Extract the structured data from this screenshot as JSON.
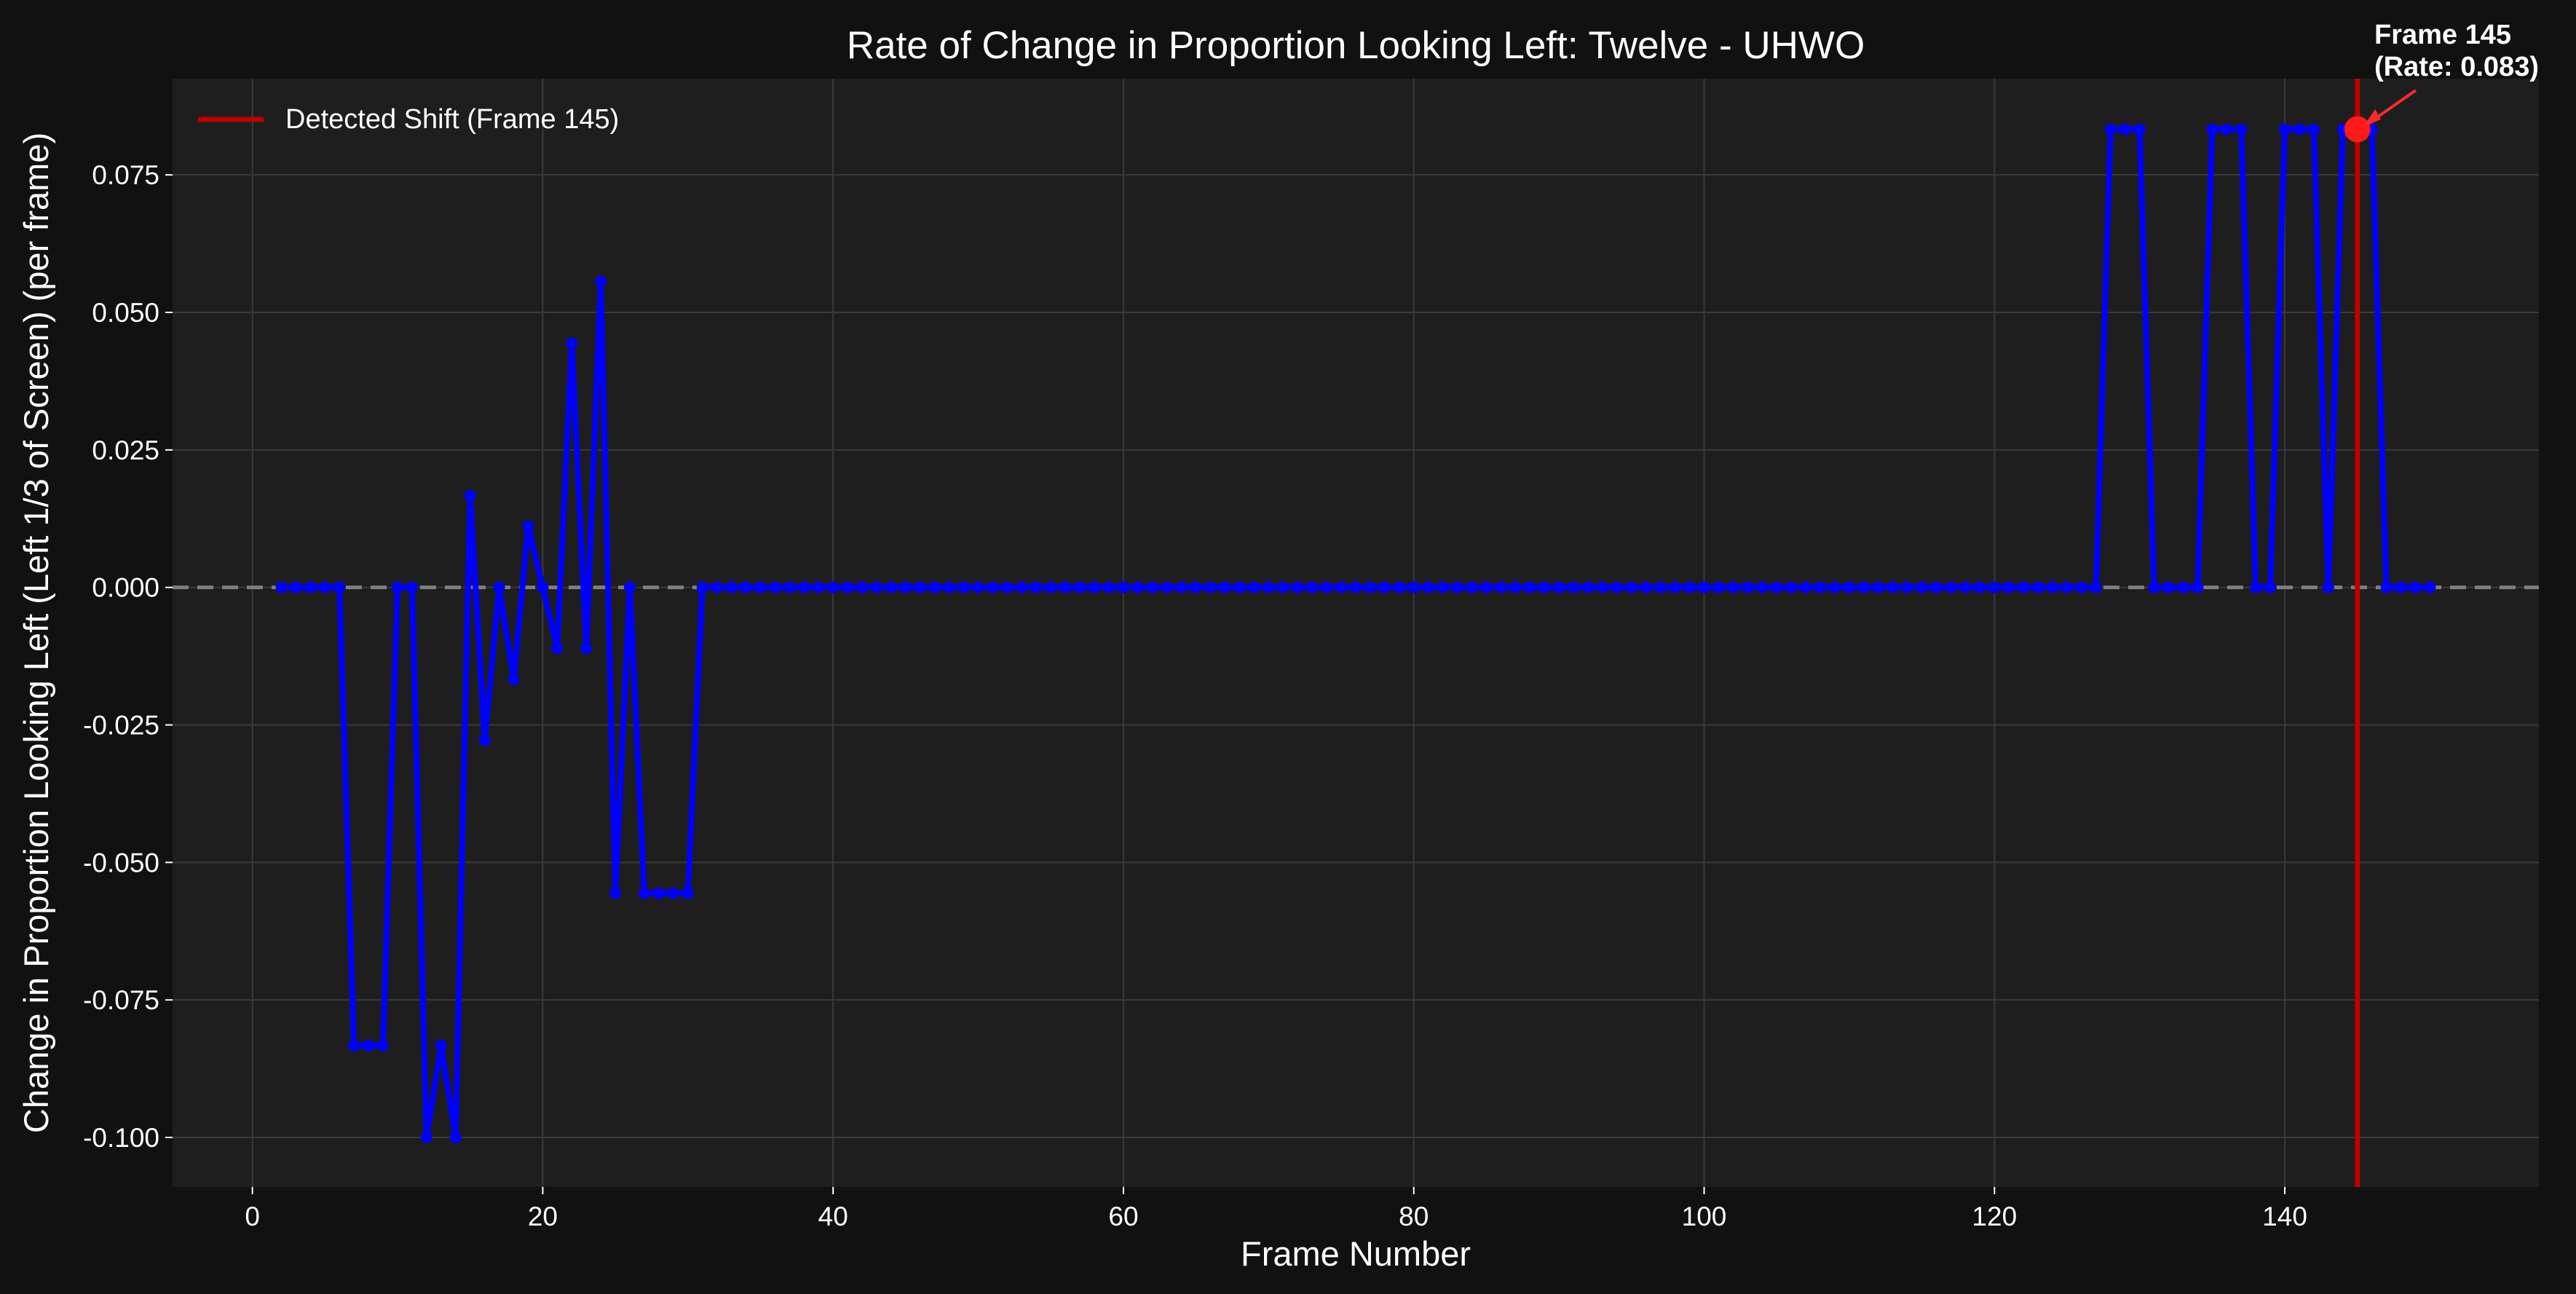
{
  "chart_data": {
    "type": "line",
    "title": "Rate of Change in Proportion Looking Left: Twelve - UHWO",
    "xlabel": "Frame Number",
    "ylabel": "Change in Proportion Looking Left (Left 1/3 of Screen) (per frame)",
    "xlim": [
      -5.5,
      157.5
    ],
    "ylim": [
      -0.109,
      0.0925
    ],
    "x_ticks": [
      "0",
      "20",
      "40",
      "60",
      "80",
      "100",
      "120",
      "140"
    ],
    "y_ticks": [
      "0.075",
      "0.050",
      "0.025",
      "0.000",
      "-0.025",
      "-0.050",
      "-0.075",
      "-0.100"
    ],
    "grid": true,
    "legend_position": "top-left",
    "legend_label": "Detected Shift (Frame 145)",
    "shift_frame": 145,
    "reference_line_y": 0.0,
    "marker": {
      "x": 145,
      "y": 0.0833
    },
    "annotation": {
      "line1": "Frame 145",
      "line2": "(Rate: 0.083)"
    },
    "series": [
      {
        "x": [
          2,
          3,
          4,
          5,
          6,
          7,
          8,
          9,
          10,
          11,
          12,
          13,
          14,
          15,
          16,
          17,
          18,
          19,
          20,
          21,
          22,
          23,
          24,
          25,
          26,
          27,
          28,
          29,
          30,
          31,
          32,
          33,
          34,
          35,
          36,
          37,
          38,
          39,
          40,
          41,
          42,
          43,
          44,
          45,
          46,
          47,
          48,
          49,
          50,
          51,
          52,
          53,
          54,
          55,
          56,
          57,
          58,
          59,
          60,
          61,
          62,
          63,
          64,
          65,
          66,
          67,
          68,
          69,
          70,
          71,
          72,
          73,
          74,
          75,
          76,
          77,
          78,
          79,
          80,
          81,
          82,
          83,
          84,
          85,
          86,
          87,
          88,
          89,
          90,
          91,
          92,
          93,
          94,
          95,
          96,
          97,
          98,
          99,
          100,
          101,
          102,
          103,
          104,
          105,
          106,
          107,
          108,
          109,
          110,
          111,
          112,
          113,
          114,
          115,
          116,
          117,
          118,
          119,
          120,
          121,
          122,
          123,
          124,
          125,
          126,
          127,
          128,
          129,
          130,
          131,
          132,
          133,
          134,
          135,
          136,
          137,
          138,
          139,
          140,
          141,
          142,
          143,
          144,
          145,
          146,
          147,
          148,
          149,
          150
        ],
        "values": [
          0,
          0,
          0,
          0,
          0,
          -0.0833,
          -0.0833,
          -0.0833,
          0,
          0,
          -0.1,
          -0.0833,
          -0.1,
          0.0167,
          -0.0278,
          0,
          -0.0167,
          0.0111,
          0,
          -0.0111,
          0.0444,
          -0.0111,
          0.0556,
          -0.0556,
          0,
          -0.0556,
          -0.0556,
          -0.0556,
          -0.0556,
          0,
          0,
          0,
          0,
          0,
          0,
          0,
          0,
          0,
          0,
          0,
          0,
          0,
          0,
          0,
          0,
          0,
          0,
          0,
          0,
          0,
          0,
          0,
          0,
          0,
          0,
          0,
          0,
          0,
          0,
          0,
          0,
          0,
          0,
          0,
          0,
          0,
          0,
          0,
          0,
          0,
          0,
          0,
          0,
          0,
          0,
          0,
          0,
          0,
          0,
          0,
          0,
          0,
          0,
          0,
          0,
          0,
          0,
          0,
          0,
          0,
          0,
          0,
          0,
          0,
          0,
          0,
          0,
          0,
          0,
          0,
          0,
          0,
          0,
          0,
          0,
          0,
          0,
          0,
          0,
          0,
          0,
          0,
          0,
          0,
          0,
          0,
          0,
          0,
          0,
          0,
          0,
          0,
          0,
          0,
          0,
          0,
          0.0833,
          0.0833,
          0.0833,
          0,
          0,
          0,
          0,
          0.0833,
          0.0833,
          0.0833,
          0,
          0,
          0.0833,
          0.0833,
          0.0833,
          0,
          0.0833,
          0.0833,
          0.0833,
          0,
          0,
          0,
          0
        ]
      }
    ],
    "colors": {
      "figure_bg": "#111111",
      "axes_bg": "#1e1e1e",
      "series": "#0000ff",
      "shift_line": "#c00000",
      "marker": "#ff1a1a",
      "reference_line": "#7f7f7f",
      "text": "#ffffff"
    }
  }
}
